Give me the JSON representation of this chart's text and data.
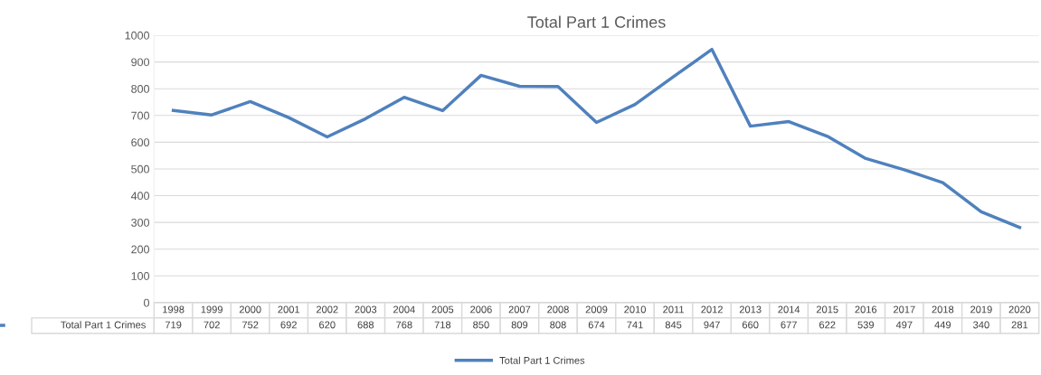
{
  "chart_data": {
    "type": "line",
    "title": "Total Part 1 Crimes",
    "categories": [
      "1998",
      "1999",
      "2000",
      "2001",
      "2002",
      "2003",
      "2004",
      "2005",
      "2006",
      "2007",
      "2008",
      "2009",
      "2010",
      "2011",
      "2012",
      "2013",
      "2014",
      "2015",
      "2016",
      "2017",
      "2018",
      "2019",
      "2020"
    ],
    "series": [
      {
        "name": "Total Part 1 Crimes",
        "color": "#4f81bd",
        "values": [
          719,
          702,
          752,
          692,
          620,
          688,
          768,
          718,
          850,
          809,
          808,
          674,
          741,
          845,
          947,
          660,
          677,
          622,
          539,
          497,
          449,
          340,
          281
        ]
      }
    ],
    "ylim": [
      0,
      1000
    ],
    "yticks": [
      0,
      100,
      200,
      300,
      400,
      500,
      600,
      700,
      800,
      900,
      1000
    ],
    "grid": "y",
    "legend": "bottom",
    "data_labels": true,
    "marker": "none",
    "line_style": "solid"
  }
}
